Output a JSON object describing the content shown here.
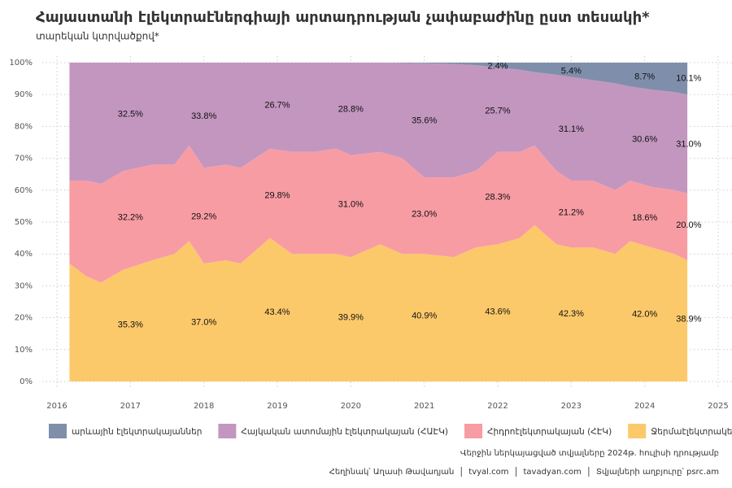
{
  "chart_data": {
    "type": "stacked_area",
    "title": "Հայաստանի էլեկտրաէներգիայի արտադրության չափաբաժինը ըստ տեսակի*",
    "subtitle": "տարեկան կտրվածքով*",
    "note": "Վերջին ներկայացված տվյալները 2024թ. հուլիսի դրությամբ",
    "credits": [
      "Հեղինակ՝ Աղասի Թավադյան",
      "tvyal.com",
      "tavadyan.com",
      "Տվյալների աղբյուրը՝ psrc.am"
    ],
    "x": [
      2016.17,
      2016.4,
      2016.6,
      2016.9,
      2017.3,
      2017.6,
      2017.8,
      2018.0,
      2018.3,
      2018.5,
      2018.9,
      2019.2,
      2019.5,
      2019.8,
      2020.0,
      2020.4,
      2020.7,
      2021.0,
      2021.4,
      2021.7,
      2022.0,
      2022.3,
      2022.5,
      2022.8,
      2023.0,
      2023.3,
      2023.6,
      2023.8,
      2024.1,
      2024.4,
      2024.58
    ],
    "xlim": [
      2015.8,
      2025.2
    ],
    "xticks": [
      2016,
      2017,
      2018,
      2019,
      2020,
      2021,
      2022,
      2023,
      2024,
      2025
    ],
    "ylim": [
      0,
      100
    ],
    "yticks": [
      {
        "value": 0,
        "label": "0%"
      },
      {
        "value": 10,
        "label": "10%"
      },
      {
        "value": 20,
        "label": "20%"
      },
      {
        "value": 30,
        "label": "30%"
      },
      {
        "value": 40,
        "label": "40%"
      },
      {
        "value": 50,
        "label": "50%"
      },
      {
        "value": 60,
        "label": "60%"
      },
      {
        "value": 70,
        "label": "70%"
      },
      {
        "value": 80,
        "label": "80%"
      },
      {
        "value": 90,
        "label": "90%"
      },
      {
        "value": 100,
        "label": "100%"
      }
    ],
    "grid": true,
    "legend": "bottom",
    "annual_x": [
      2017,
      2018,
      2019,
      2020,
      2021,
      2022,
      2023,
      2024,
      2024.6
    ],
    "series": [
      {
        "name": "արևային էլեկտրակայաններ",
        "color": "#7f8fab",
        "values": [
          0,
          0,
          0,
          0,
          0,
          0,
          0,
          0,
          0,
          0,
          0,
          0,
          0,
          0,
          0,
          0,
          0.1,
          0.2,
          0.4,
          0.8,
          1.5,
          2.2,
          3,
          3.8,
          4.5,
          5.5,
          6.5,
          7.5,
          8.5,
          9.2,
          10
        ],
        "annual_values": [
          null,
          null,
          null,
          null,
          null,
          2.4,
          5.4,
          8.7,
          10.1
        ],
        "annual_labels": [
          null,
          null,
          null,
          null,
          null,
          "2.4%",
          "5.4%",
          "8.7%",
          "10.1%"
        ]
      },
      {
        "name": "Հայկական ատոմային էլեկտրակայան (ՀԱԷԿ)",
        "color": "#c396c0",
        "values": [
          37,
          37,
          38,
          34,
          32,
          32,
          26,
          33,
          32,
          33,
          27,
          28,
          28,
          27,
          29,
          28,
          29.9,
          35.8,
          35.6,
          33.2,
          26.5,
          25.8,
          23,
          30.2,
          32.5,
          31.5,
          33.5,
          29.5,
          30.5,
          30.8,
          31
        ],
        "annual_values": [
          32.5,
          33.8,
          26.7,
          28.8,
          35.6,
          25.7,
          31.1,
          30.6,
          31.0
        ],
        "annual_labels": [
          "32.5%",
          "33.8%",
          "26.7%",
          "28.8%",
          "35.6%",
          "25.7%",
          "31.1%",
          "30.6%",
          "31.0%"
        ]
      },
      {
        "name": "Հիդրոէլեկտրակայան (ՀԷԿ)",
        "color": "#f89ca4",
        "values": [
          26,
          30,
          31,
          31,
          30,
          28,
          30,
          30,
          30,
          30,
          28,
          32,
          32,
          33,
          32,
          29,
          30,
          24,
          25,
          24,
          29,
          27,
          25,
          23,
          21,
          21,
          20,
          19,
          19,
          20,
          21
        ],
        "annual_values": [
          32.2,
          29.2,
          29.8,
          31.0,
          23.0,
          28.3,
          21.2,
          18.6,
          20.0
        ],
        "annual_labels": [
          "32.2%",
          "29.2%",
          "29.8%",
          "31.0%",
          "23.0%",
          "28.3%",
          "21.2%",
          "18.6%",
          "20.0%"
        ]
      },
      {
        "name": "Ջերմաէլեկտրակենտրոն (ՋԷԿ)",
        "color": "#fcc96a",
        "values": [
          37,
          33,
          31,
          35,
          38,
          40,
          44,
          37,
          38,
          37,
          45,
          40,
          40,
          40,
          39,
          43,
          40,
          40,
          39,
          42,
          43,
          45,
          49,
          43,
          42,
          42,
          40,
          44,
          42,
          40,
          38
        ],
        "annual_values": [
          35.3,
          37.0,
          43.4,
          39.9,
          40.9,
          43.6,
          42.3,
          42.0,
          38.9
        ],
        "annual_labels": [
          "35.3%",
          "37.0%",
          "43.4%",
          "39.9%",
          "40.9%",
          "43.6%",
          "42.3%",
          "42.0%",
          "38.9%"
        ]
      }
    ]
  }
}
